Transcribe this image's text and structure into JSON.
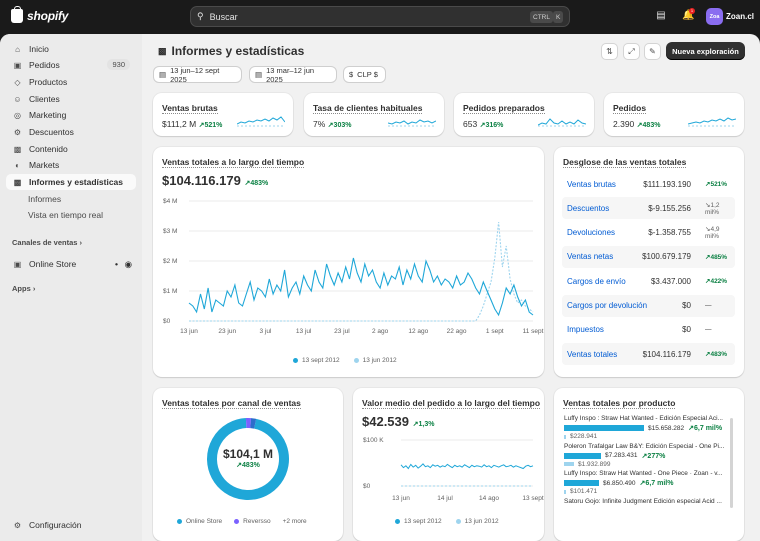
{
  "topbar": {
    "logo": "shopify",
    "search_placeholder": "Buscar",
    "kbd_ctrl": "CTRL",
    "kbd_k": "K",
    "notif_count": "1",
    "avatar": "Zoa",
    "store": "Zoan.cl"
  },
  "sidebar": {
    "items": [
      {
        "label": "Inicio",
        "icon": "home-icon"
      },
      {
        "label": "Pedidos",
        "icon": "inbox-icon",
        "count": "930"
      },
      {
        "label": "Productos",
        "icon": "tag-icon"
      },
      {
        "label": "Clientes",
        "icon": "person-icon"
      },
      {
        "label": "Marketing",
        "icon": "target-icon"
      },
      {
        "label": "Descuentos",
        "icon": "discount-icon"
      },
      {
        "label": "Contenido",
        "icon": "image-icon"
      },
      {
        "label": "Markets",
        "icon": "globe-icon"
      },
      {
        "label": "Informes y estadísticas",
        "icon": "chart-icon"
      }
    ],
    "subitems": [
      "Informes",
      "Vista en tiempo real"
    ],
    "channels_label": "Canales de ventas",
    "online_store": "Online Store",
    "apps_label": "Apps",
    "settings": "Configuración"
  },
  "header": {
    "title": "Informes y estadísticas",
    "new_btn": "Nueva exploración",
    "date1": "13 jun–12 sept 2025",
    "date2": "13 mar–12 jun 2025",
    "currency": "CLP $"
  },
  "kpis": [
    {
      "title": "Ventas brutas",
      "value": "$111,2 M",
      "change": "521%"
    },
    {
      "title": "Tasa de clientes habituales",
      "value": "7%",
      "change": "303%"
    },
    {
      "title": "Pedidos preparados",
      "value": "653",
      "change": "316%"
    },
    {
      "title": "Pedidos",
      "value": "2.390",
      "change": "483%"
    }
  ],
  "main_chart": {
    "title": "Ventas totales a lo largo del tiempo",
    "value": "$104.116.179",
    "change": "483%",
    "legend": [
      "13 sept 2012",
      "13 jun 2012"
    ]
  },
  "breakdown": {
    "title": "Desglose de las ventas totales",
    "rows": [
      {
        "label": "Ventas brutas",
        "value": "$111.193.190",
        "change": "521%",
        "dir": "up"
      },
      {
        "label": "Descuentos",
        "value": "$-9.155.256",
        "change": "1,2 mil%",
        "dir": "down"
      },
      {
        "label": "Devoluciones",
        "value": "$-1.358.755",
        "change": "4,9 mil%",
        "dir": "down"
      },
      {
        "label": "Ventas netas",
        "value": "$100.679.179",
        "change": "485%",
        "dir": "up"
      },
      {
        "label": "Cargos de envío",
        "value": "$3.437.000",
        "change": "422%",
        "dir": "up"
      },
      {
        "label": "Cargos por devolución",
        "value": "$0",
        "change": "—",
        "dir": "none"
      },
      {
        "label": "Impuestos",
        "value": "$0",
        "change": "—",
        "dir": "none"
      },
      {
        "label": "Ventas totales",
        "value": "$104.116.179",
        "change": "483%",
        "dir": "up"
      }
    ]
  },
  "channel_card": {
    "title": "Ventas totales por canal de ventas",
    "center": "$104,1 M",
    "change": "483%",
    "legend": [
      "Online Store",
      "Reversso",
      "+2 more"
    ]
  },
  "aov_card": {
    "title": "Valor medio del pedido a lo largo del tiempo",
    "value": "$42.539",
    "change": "1,3%",
    "legend": [
      "13 sept 2012",
      "13 jun 2012"
    ]
  },
  "product_card": {
    "title": "Ventas totales por producto",
    "items": [
      {
        "name": "Luffy Inspo : Straw Hat Wanted - Edición Especial Aci...",
        "value": "$15.658.282",
        "prev": "$228.941",
        "change": "6,7 mil%"
      },
      {
        "name": "Poleron Trafalgar Law B&Y: Edición Especial - One Pi...",
        "value": "$7.283.431",
        "prev": "$1.932.899",
        "change": "277%"
      },
      {
        "name": "Luffy Inspo: Straw Hat Wanted - One Piece · Zoan - v...",
        "value": "$6.850.490",
        "prev": "$101.471",
        "change": "6,7 mil%"
      },
      {
        "name": "Satoru Gojo: Infinite Judgment Edición especial Acid ...",
        "value": "",
        "prev": "",
        "change": ""
      }
    ]
  },
  "chart_data": [
    {
      "type": "line",
      "title": "Ventas totales a lo largo del tiempo",
      "x_ticks": [
        "13 jun",
        "23 jun",
        "3 jul",
        "13 jul",
        "23 jul",
        "2 ago",
        "12 ago",
        "22 ago",
        "1 sept",
        "11 sept"
      ],
      "y_ticks": [
        "$0",
        "$1 M",
        "$2 M",
        "$3 M",
        "$4 M"
      ],
      "ylim": [
        0,
        4000000
      ],
      "series": [
        {
          "name": "13 sept 2012",
          "values": [
            600000,
            500000,
            300000,
            900000,
            400000,
            1100000,
            300000,
            700000,
            600000,
            500000,
            1000000,
            800000,
            1200000,
            600000,
            500000,
            900000,
            1300000,
            700000,
            1100000,
            1000000,
            800000,
            1400000,
            900000,
            1200000,
            1000000,
            1700000,
            800000,
            1100000,
            1300000,
            900000,
            1500000,
            1200000,
            1000000,
            1700000,
            1300000,
            1100000,
            1900000,
            1500000,
            1200000,
            1600000,
            1300000,
            1800000,
            1400000,
            2100000,
            1600000,
            1300000,
            1900000,
            1500000,
            1700000,
            1300000,
            1100000,
            1600000,
            1200000,
            1500000,
            1400000,
            1800000,
            1200000,
            1700000,
            1400000,
            1900000,
            1500000,
            1300000,
            2000000,
            1700000,
            1300000,
            1500000,
            1200000,
            1400000,
            1300000,
            1100000,
            1500000,
            1200000,
            1300000,
            1600000,
            1400000,
            1100000,
            900000,
            1300000,
            1000000,
            700000,
            400000,
            200000,
            600000,
            1100000,
            900000,
            1200000,
            800000,
            500000,
            700000,
            300000,
            200000
          ],
          "color": "#1fa7d8"
        },
        {
          "name": "13 jun 2012",
          "values": [
            0,
            0,
            0,
            0,
            0,
            0,
            0,
            0,
            0,
            0,
            0,
            0,
            0,
            0,
            0,
            0,
            0,
            0,
            0,
            0,
            0,
            0,
            0,
            0,
            0,
            0,
            0,
            0,
            0,
            0,
            0,
            0,
            0,
            0,
            0,
            0,
            0,
            0,
            0,
            0,
            0,
            0,
            0,
            0,
            0,
            0,
            0,
            0,
            0,
            0,
            0,
            0,
            0,
            0,
            0,
            0,
            0,
            0,
            0,
            0,
            0,
            0,
            0,
            0,
            0,
            0,
            0,
            0,
            0,
            0,
            0,
            0,
            0,
            0,
            0,
            0,
            200000,
            500000,
            900000,
            1300000,
            2100000,
            3300000,
            1800000,
            2500000,
            1400000,
            900000,
            600000,
            700000,
            500000,
            400000,
            300000
          ],
          "color": "#9ed4ee"
        }
      ]
    },
    {
      "type": "pie",
      "title": "Ventas totales por canal de ventas",
      "series": [
        {
          "name": "Online Store",
          "value": 96
        },
        {
          "name": "Reversso",
          "value": 2
        },
        {
          "name": "+2 more",
          "value": 2
        }
      ]
    },
    {
      "type": "line",
      "title": "Valor medio del pedido a lo largo del tiempo",
      "x_ticks": [
        "13 jun",
        "14 jul",
        "14 ago",
        "13 sept"
      ],
      "y_ticks": [
        "$0",
        "$100 K"
      ],
      "ylim": [
        0,
        100000
      ],
      "series": [
        {
          "name": "13 sept 2012",
          "values": [
            46000,
            40000,
            44000,
            38000,
            47000,
            41000,
            45000,
            39000,
            43000,
            48000,
            42000,
            44000,
            40000,
            46000,
            43000,
            45000,
            41000,
            44000,
            42000,
            47000,
            43000,
            40000,
            45000,
            42000,
            44000,
            41000,
            46000,
            43000,
            40000,
            45000,
            42000,
            44000,
            43000,
            41000,
            46000,
            42000,
            44000,
            40000,
            45000,
            43000,
            41000,
            44000,
            46000,
            42000,
            43000,
            45000,
            41000,
            44000,
            42000,
            40000,
            38000,
            43000,
            45000,
            42000,
            44000
          ],
          "color": "#1fa7d8"
        }
      ]
    },
    {
      "type": "bar",
      "title": "Ventas totales por producto",
      "categories": [
        "Luffy Inspo : Straw Hat Wanted",
        "Poleron Trafalgar Law B&Y",
        "Luffy Inspo: Straw Hat Wanted - One Piece"
      ],
      "values": [
        15658282,
        7283431,
        6850490
      ],
      "prev": [
        228941,
        1932899,
        101471
      ]
    }
  ]
}
